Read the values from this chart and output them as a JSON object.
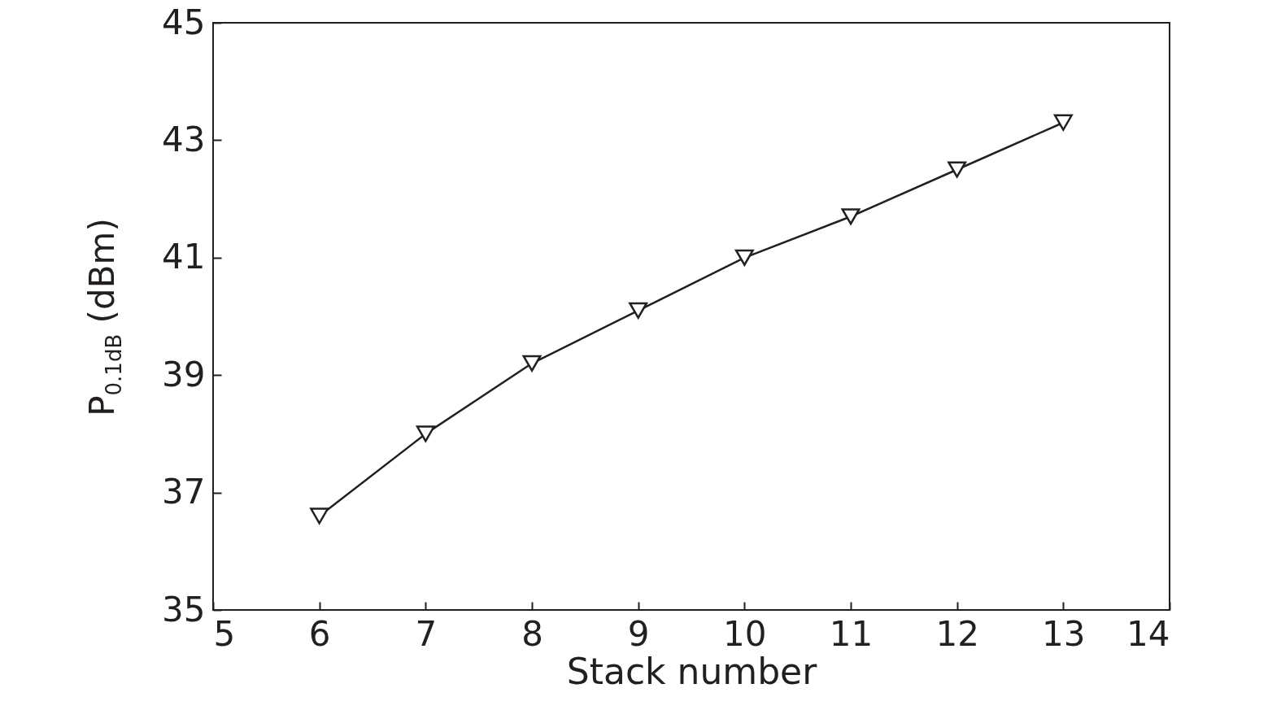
{
  "chart_data": {
    "type": "line",
    "xlabel": "Stack number",
    "ylabel": "P$_{0.1dB}$ (dBm)",
    "x": [
      6,
      7,
      8,
      9,
      10,
      11,
      12,
      13
    ],
    "series": [
      {
        "color": "#231f20",
        "values": [
          36.6,
          38.0,
          39.2,
          40.1,
          41.0,
          41.7,
          42.5,
          43.3
        ]
      }
    ],
    "xlim": [
      5,
      14
    ],
    "xticks": [
      5,
      6,
      7,
      8,
      9,
      10,
      11,
      12,
      13,
      14
    ],
    "ylim": [
      35,
      45
    ],
    "yticks": [
      35,
      37,
      39,
      41,
      43,
      45
    ],
    "marker": "triangle",
    "line_style": "solid",
    "grid": false
  }
}
